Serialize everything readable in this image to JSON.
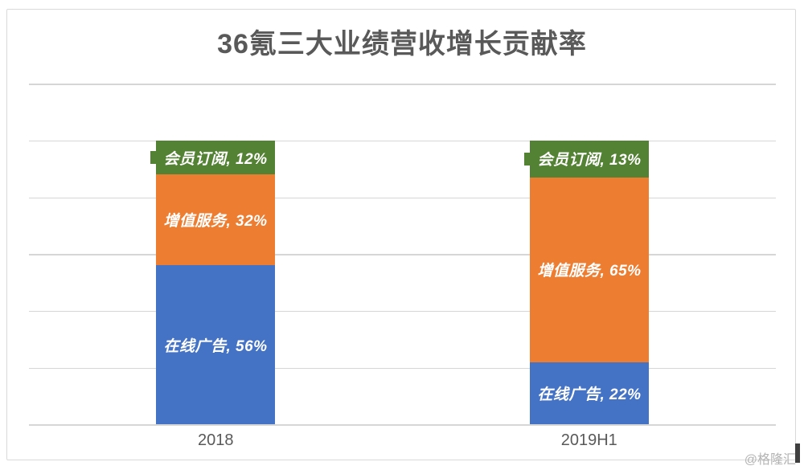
{
  "chart_data": {
    "type": "bar",
    "subtype": "stacked-column-100",
    "title": "36氪三大业绩营收增长贡献率",
    "categories": [
      "2018",
      "2019H1"
    ],
    "series": [
      {
        "name": "在线广告",
        "color": "#4472C4",
        "values": [
          56,
          22
        ],
        "data_labels": [
          "在线广告, 56%",
          "在线广告, 22%"
        ]
      },
      {
        "name": "增值服务",
        "color": "#ED7D31",
        "values": [
          32,
          65
        ],
        "data_labels": [
          "增值服务, 32%",
          "增值服务, 65%"
        ]
      },
      {
        "name": "会员订阅",
        "color": "#548235",
        "values": [
          12,
          13
        ],
        "data_labels": [
          "会员订阅, 12%",
          "会员订阅, 13%"
        ]
      }
    ],
    "unit": "%",
    "ylim": [
      0,
      120
    ],
    "gridline_step": 20,
    "grid": true,
    "legend": "none",
    "xlabel": "",
    "ylabel": ""
  },
  "watermark": {
    "text": "@格隆汇"
  },
  "colors": {
    "background": "#FFFFFF",
    "title_text": "#595959",
    "axis_text": "#595959",
    "gridline": "#D6D6D6",
    "frame_border": "#D9D9D9",
    "data_label_text": "#FFFFFF",
    "watermark_text": "#B3B3B3",
    "edge_artifact": "#3F3F3F"
  }
}
